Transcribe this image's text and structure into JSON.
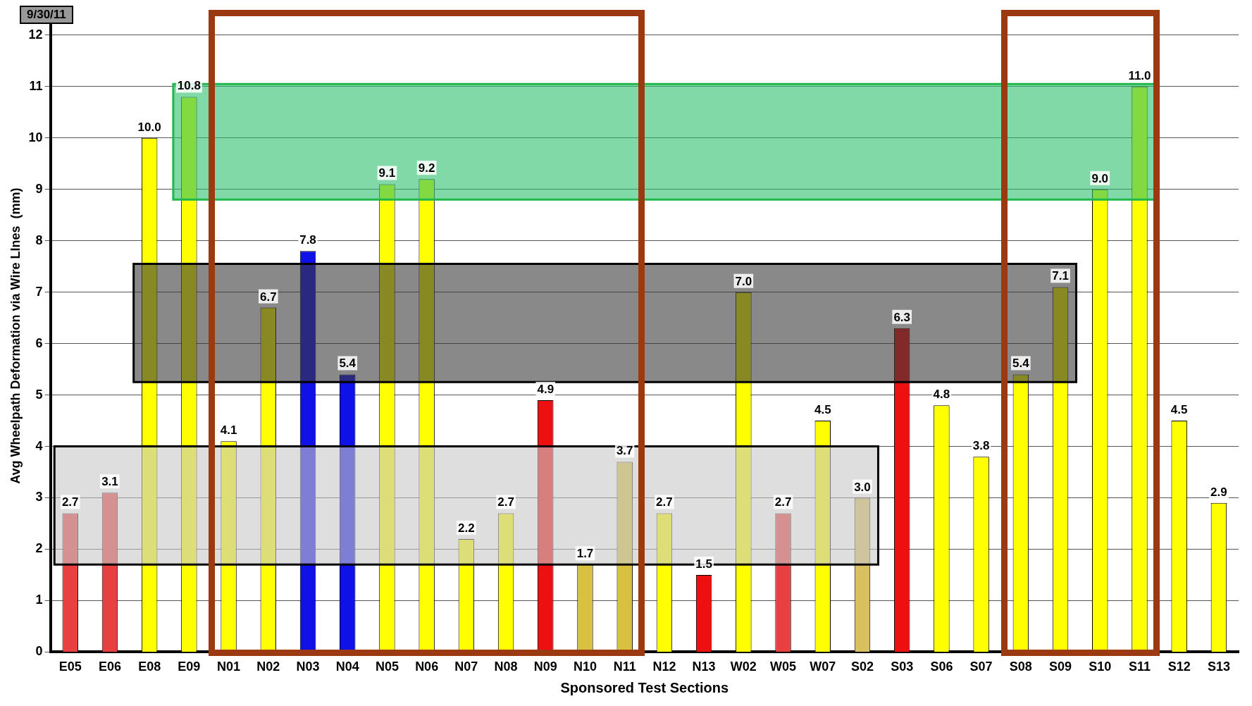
{
  "chart_data": {
    "type": "bar",
    "xlabel": "Sponsored Test Sections",
    "ylabel": "Avg Wheelpath Deformation via Wire LInes  (mm)",
    "categories": [
      "E05",
      "E06",
      "E08",
      "E09",
      "N01",
      "N02",
      "N03",
      "N04",
      "N05",
      "N06",
      "N07",
      "N08",
      "N09",
      "N10",
      "N11",
      "N12",
      "N13",
      "W02",
      "W05",
      "W07",
      "S02",
      "S03",
      "S06",
      "S07",
      "S08",
      "S09",
      "S10",
      "S11",
      "S12",
      "S13"
    ],
    "values": [
      2.7,
      3.1,
      10.0,
      10.8,
      4.1,
      6.7,
      7.8,
      5.4,
      9.1,
      9.2,
      2.2,
      2.7,
      4.9,
      1.7,
      3.7,
      2.7,
      1.5,
      7.0,
      2.7,
      4.5,
      3.0,
      6.3,
      4.8,
      3.8,
      5.4,
      7.1,
      9.0,
      11.0,
      4.5,
      2.9
    ],
    "colors": [
      "#e84040",
      "#e84040",
      "#ffff00",
      "#ffff00",
      "#ffff00",
      "#ffff00",
      "#1010e8",
      "#1010e8",
      "#ffff00",
      "#ffff00",
      "#ffff00",
      "#ffff00",
      "#ee1010",
      "#d8c040",
      "#d8c040",
      "#ffff00",
      "#ee1010",
      "#ffff00",
      "#e84040",
      "#ffff00",
      "#d8c060",
      "#ee1010",
      "#ffff00",
      "#ffff00",
      "#ffff00",
      "#ffff00",
      "#ffff00",
      "#ffff00",
      "#ffff00",
      "#ffff00"
    ],
    "value_labels": [
      "2.7",
      "3.1",
      "10.0",
      "10.8",
      "4.1",
      "6.7",
      "7.8",
      "5.4",
      "9.1",
      "9.2",
      "2.2",
      "2.7",
      "4.9",
      "1.7",
      "3.7",
      "2.7",
      "1.5",
      "7.0",
      "2.7",
      "4.5",
      "3.0",
      "6.3",
      "4.8",
      "3.8",
      "5.4",
      "7.1",
      "9.0",
      "11.0",
      "4.5",
      "2.9"
    ],
    "ylim": [
      0,
      12.3
    ],
    "yticks": [
      0,
      1,
      2,
      3,
      4,
      5,
      6,
      7,
      8,
      9,
      10,
      11,
      12
    ],
    "grid": "y",
    "legend": false,
    "bands": [
      {
        "axis": "y",
        "from": 8.8,
        "to": 11.05,
        "color": "#2ebf6e"
      },
      {
        "axis": "y",
        "from": 5.25,
        "to": 7.55,
        "color": "#3a3a3a"
      },
      {
        "axis": "y",
        "from": 1.7,
        "to": 4.0,
        "color": "#c8c8c8"
      }
    ],
    "annotations": [
      "9/30/11"
    ]
  }
}
